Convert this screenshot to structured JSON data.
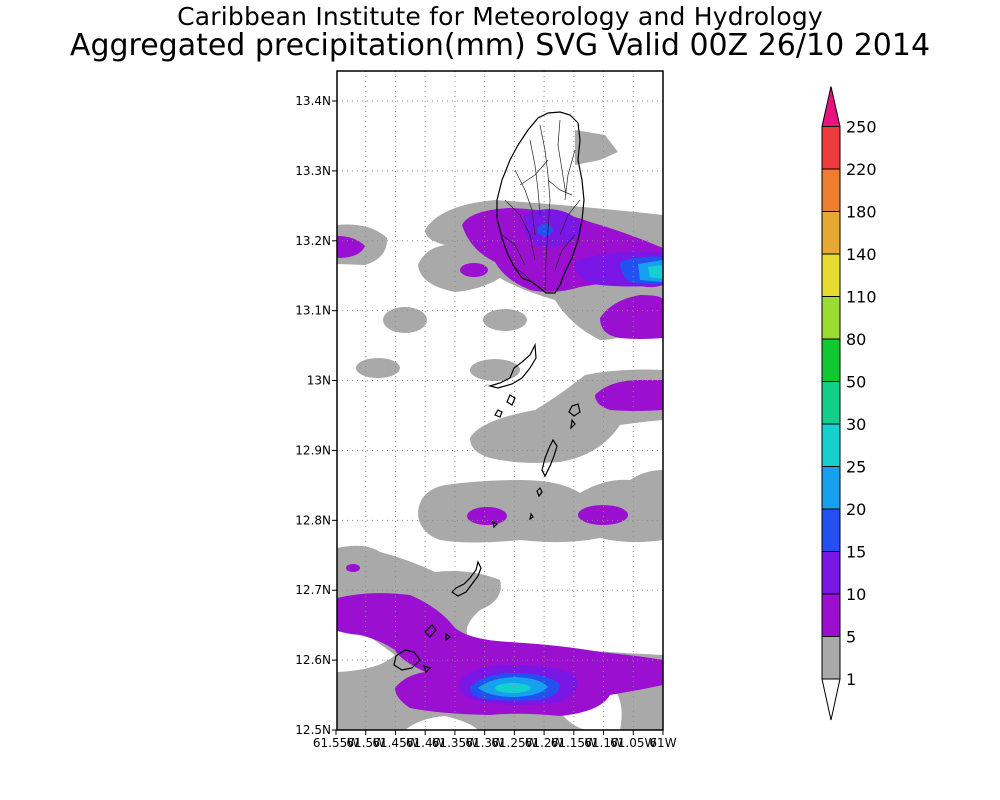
{
  "title_line1": "Caribbean Institute for Meteorology and Hydrology",
  "title_line2": "Aggregated precipitation(mm) SVG Valid 00Z 26/10 2014",
  "map": {
    "lat_labels": [
      "13.4N",
      "13.3N",
      "13.2N",
      "13.1N",
      "13N",
      "12.9N",
      "12.8N",
      "12.7N",
      "12.6N",
      "12.5N"
    ],
    "lon_labels": [
      "61.55W",
      "61.5W",
      "61.45W",
      "61.4W",
      "61.35W",
      "61.3W",
      "61.25W",
      "61.2W",
      "61.15W",
      "61.1W",
      "61.05W",
      "61W"
    ],
    "lat_range": [
      12.5,
      13.45
    ],
    "lon_range": [
      -61.55,
      -61.0
    ],
    "grid": "dotted"
  },
  "colorbar": {
    "levels": [
      "1",
      "5",
      "10",
      "15",
      "20",
      "25",
      "30",
      "50",
      "80",
      "110",
      "140",
      "180",
      "220",
      "250"
    ],
    "colors": [
      "#ffffff",
      "#a9a9a9",
      "#9b0fd1",
      "#7a16e6",
      "#2350f0",
      "#16a0f0",
      "#16d0d0",
      "#10cf8a",
      "#10c830",
      "#9bdc30",
      "#e6dc30",
      "#e6a830",
      "#ee7d30",
      "#ee3c3c",
      "#e6147e"
    ]
  }
}
